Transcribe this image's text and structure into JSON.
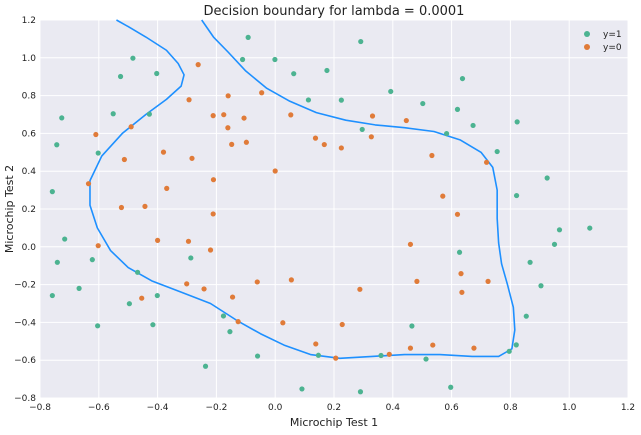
{
  "chart_data": {
    "type": "scatter",
    "title": "Decision boundary for lambda = 0.0001",
    "xlabel": "Microchip Test 1",
    "ylabel": "Microchip Test 2",
    "xlim": [
      -0.8,
      1.2
    ],
    "ylim": [
      -0.8,
      1.2
    ],
    "xticks": [
      -0.8,
      -0.6,
      -0.4,
      -0.2,
      0.0,
      0.2,
      0.4,
      0.6,
      0.8,
      1.0,
      1.2
    ],
    "yticks": [
      -0.8,
      -0.6,
      -0.4,
      -0.2,
      0.0,
      0.2,
      0.4,
      0.6,
      0.8,
      1.0,
      1.2
    ],
    "xtick_labels": [
      "−0.8",
      "−0.6",
      "−0.4",
      "−0.2",
      "0.0",
      "0.2",
      "0.4",
      "0.6",
      "0.8",
      "1.0",
      "1.2"
    ],
    "ytick_labels": [
      "−0.8",
      "−0.6",
      "−0.4",
      "−0.2",
      "0.0",
      "0.2",
      "0.4",
      "0.6",
      "0.8",
      "1.0",
      "1.2"
    ],
    "grid": true,
    "legend_position": "top-right",
    "colors": {
      "background": "#eaeaf2",
      "grid": "#ffffff",
      "boundary": "#1e90ff"
    },
    "series": [
      {
        "name": "y=1",
        "color": "#4cb391",
        "points": [
          [
            -0.092,
            1.108
          ],
          [
            -0.111,
            0.991
          ],
          [
            -0.001,
            0.991
          ],
          [
            0.291,
            1.086
          ],
          [
            -0.403,
            0.917
          ],
          [
            -0.526,
            0.901
          ],
          [
            -0.484,
            0.998
          ],
          [
            0.063,
            0.916
          ],
          [
            0.176,
            0.933
          ],
          [
            -0.726,
            0.682
          ],
          [
            -0.551,
            0.704
          ],
          [
            -0.428,
            0.702
          ],
          [
            0.113,
            0.777
          ],
          [
            0.225,
            0.776
          ],
          [
            0.393,
            0.822
          ],
          [
            0.502,
            0.758
          ],
          [
            0.62,
            0.727
          ],
          [
            0.637,
            0.89
          ],
          [
            0.673,
            0.642
          ],
          [
            0.583,
            0.599
          ],
          [
            0.296,
            0.621
          ],
          [
            0.823,
            0.661
          ],
          [
            -0.743,
            0.54
          ],
          [
            -0.602,
            0.496
          ],
          [
            0.755,
            0.504
          ],
          [
            -0.758,
            0.292
          ],
          [
            0.925,
            0.364
          ],
          [
            0.821,
            0.271
          ],
          [
            -0.716,
            0.041
          ],
          [
            0.95,
            0.013
          ],
          [
            0.967,
            0.09
          ],
          [
            1.07,
            0.099
          ],
          [
            -0.741,
            -0.082
          ],
          [
            -0.622,
            -0.068
          ],
          [
            -0.667,
            -0.22
          ],
          [
            -0.758,
            -0.258
          ],
          [
            -0.468,
            -0.135
          ],
          [
            -0.287,
            -0.059
          ],
          [
            -0.496,
            -0.301
          ],
          [
            -0.401,
            -0.258
          ],
          [
            -0.604,
            -0.418
          ],
          [
            -0.416,
            -0.412
          ],
          [
            -0.176,
            -0.366
          ],
          [
            -0.154,
            -0.449
          ],
          [
            -0.06,
            -0.578
          ],
          [
            0.147,
            -0.574
          ],
          [
            0.36,
            -0.575
          ],
          [
            0.465,
            -0.419
          ],
          [
            0.513,
            -0.594
          ],
          [
            0.627,
            -0.029
          ],
          [
            0.867,
            -0.082
          ],
          [
            0.904,
            -0.206
          ],
          [
            0.854,
            -0.367
          ],
          [
            0.82,
            -0.519
          ],
          [
            0.796,
            -0.553
          ],
          [
            -0.237,
            -0.632
          ],
          [
            0.597,
            -0.743
          ],
          [
            0.091,
            -0.752
          ],
          [
            0.29,
            -0.767
          ]
        ]
      },
      {
        "name": "y=0",
        "color": "#e07b39",
        "points": [
          [
            -0.262,
            0.964
          ],
          [
            -0.046,
            0.815
          ],
          [
            -0.16,
            0.799
          ],
          [
            -0.293,
            0.778
          ],
          [
            -0.211,
            0.694
          ],
          [
            -0.175,
            0.699
          ],
          [
            -0.106,
            0.681
          ],
          [
            0.053,
            0.698
          ],
          [
            0.331,
            0.692
          ],
          [
            0.446,
            0.668
          ],
          [
            -0.49,
            0.635
          ],
          [
            -0.161,
            0.63
          ],
          [
            -0.61,
            0.594
          ],
          [
            0.137,
            0.575
          ],
          [
            0.327,
            0.582
          ],
          [
            -0.148,
            0.542
          ],
          [
            -0.098,
            0.553
          ],
          [
            0.167,
            0.541
          ],
          [
            0.225,
            0.523
          ],
          [
            -0.38,
            0.501
          ],
          [
            -0.513,
            0.462
          ],
          [
            -0.283,
            0.468
          ],
          [
            0.533,
            0.483
          ],
          [
            0.719,
            0.447
          ],
          [
            0.0,
            0.401
          ],
          [
            -0.21,
            0.355
          ],
          [
            -0.635,
            0.334
          ],
          [
            -0.369,
            0.309
          ],
          [
            0.57,
            0.268
          ],
          [
            -0.523,
            0.208
          ],
          [
            -0.443,
            0.214
          ],
          [
            -0.211,
            0.174
          ],
          [
            0.62,
            0.172
          ],
          [
            -0.4,
            0.034
          ],
          [
            -0.295,
            0.029
          ],
          [
            -0.602,
            0.006
          ],
          [
            0.46,
            0.013
          ],
          [
            -0.22,
            -0.017
          ],
          [
            0.632,
            -0.142
          ],
          [
            0.482,
            -0.183
          ],
          [
            0.724,
            -0.183
          ],
          [
            -0.301,
            -0.196
          ],
          [
            0.055,
            -0.175
          ],
          [
            -0.061,
            -0.186
          ],
          [
            -0.242,
            -0.223
          ],
          [
            0.288,
            -0.225
          ],
          [
            0.635,
            -0.241
          ],
          [
            -0.454,
            -0.272
          ],
          [
            -0.145,
            -0.266
          ],
          [
            -0.126,
            -0.396
          ],
          [
            0.026,
            -0.402
          ],
          [
            0.228,
            -0.411
          ],
          [
            0.138,
            -0.514
          ],
          [
            0.46,
            -0.536
          ],
          [
            0.536,
            -0.52
          ],
          [
            0.676,
            -0.536
          ],
          [
            0.206,
            -0.589
          ],
          [
            0.388,
            -0.569
          ]
        ]
      }
    ],
    "decision_boundary": [
      [
        -0.54,
        1.2
      ],
      [
        -0.5,
        1.165
      ],
      [
        -0.44,
        1.11
      ],
      [
        -0.37,
        1.04
      ],
      [
        -0.33,
        0.97
      ],
      [
        -0.31,
        0.91
      ],
      [
        -0.32,
        0.85
      ],
      [
        -0.37,
        0.78
      ],
      [
        -0.44,
        0.7
      ],
      [
        -0.52,
        0.6
      ],
      [
        -0.59,
        0.48
      ],
      [
        -0.63,
        0.35
      ],
      [
        -0.63,
        0.22
      ],
      [
        -0.605,
        0.1
      ],
      [
        -0.56,
        -0.02
      ],
      [
        -0.5,
        -0.11
      ],
      [
        -0.42,
        -0.18
      ],
      [
        -0.32,
        -0.24
      ],
      [
        -0.22,
        -0.3
      ],
      [
        -0.13,
        -0.39
      ],
      [
        -0.05,
        -0.46
      ],
      [
        0.03,
        -0.52
      ],
      [
        0.12,
        -0.57
      ],
      [
        0.22,
        -0.59
      ],
      [
        0.33,
        -0.58
      ],
      [
        0.44,
        -0.57
      ],
      [
        0.56,
        -0.57
      ],
      [
        0.67,
        -0.58
      ],
      [
        0.76,
        -0.58
      ],
      [
        0.805,
        -0.54
      ],
      [
        0.815,
        -0.44
      ],
      [
        0.81,
        -0.32
      ],
      [
        0.79,
        -0.2
      ],
      [
        0.77,
        -0.09
      ],
      [
        0.76,
        0.02
      ],
      [
        0.755,
        0.15
      ],
      [
        0.755,
        0.3
      ],
      [
        0.74,
        0.42
      ],
      [
        0.7,
        0.5
      ],
      [
        0.63,
        0.565
      ],
      [
        0.54,
        0.61
      ],
      [
        0.44,
        0.63
      ],
      [
        0.34,
        0.645
      ],
      [
        0.24,
        0.67
      ],
      [
        0.14,
        0.71
      ],
      [
        0.05,
        0.77
      ],
      [
        -0.03,
        0.84
      ],
      [
        -0.1,
        0.93
      ],
      [
        -0.16,
        1.03
      ],
      [
        -0.21,
        1.11
      ],
      [
        -0.25,
        1.2
      ]
    ]
  }
}
